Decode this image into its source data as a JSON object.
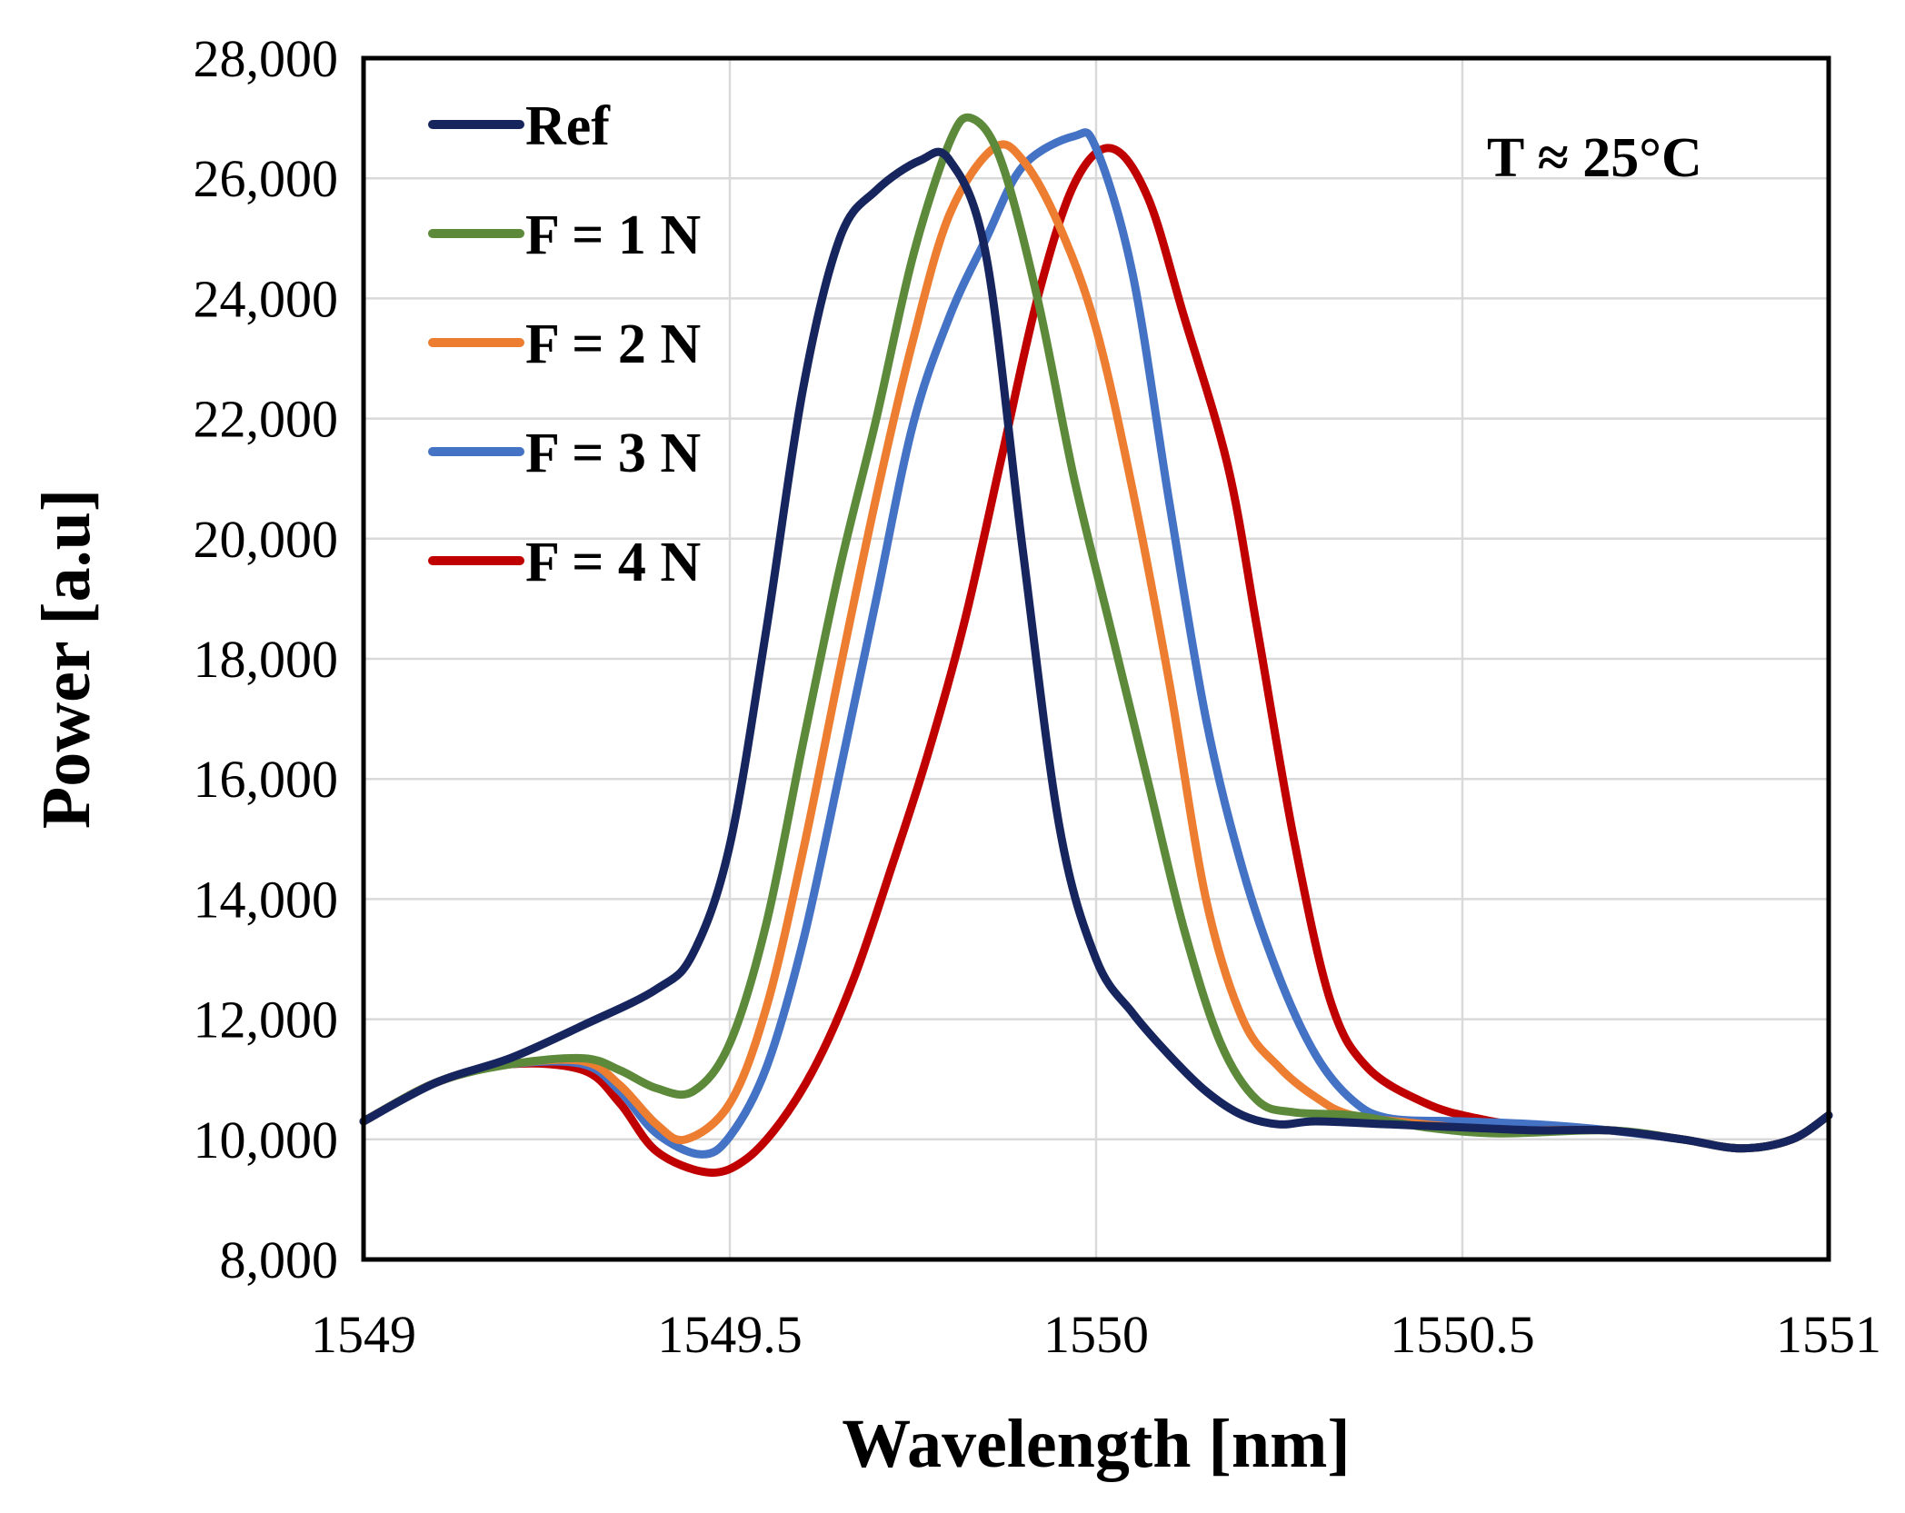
{
  "chart_data": {
    "type": "line",
    "title": "",
    "xlabel": "Wavelength [nm]",
    "ylabel": "Power [a.u]",
    "xlim": [
      1549,
      1551
    ],
    "ylim": [
      8000,
      28000
    ],
    "grid": true,
    "legend_position": "top-left",
    "x_ticks": [
      1549,
      1549.5,
      1550,
      1550.5,
      1551
    ],
    "x_tick_labels": [
      "1549",
      "1549.5",
      "1550",
      "1550.5",
      "1551"
    ],
    "y_ticks": [
      8000,
      10000,
      12000,
      14000,
      16000,
      18000,
      20000,
      22000,
      24000,
      26000,
      28000
    ],
    "y_tick_labels": [
      "8,000",
      "10,000",
      "12,000",
      "14,000",
      "16,000",
      "18,000",
      "20,000",
      "22,000",
      "24,000",
      "26,000",
      "28,000"
    ],
    "annotations": [
      "T ≈ 25°C"
    ],
    "series": [
      {
        "name": "Ref",
        "color": "#17255e",
        "points": [
          [
            1549.0,
            10300
          ],
          [
            1549.1,
            10950
          ],
          [
            1549.2,
            11350
          ],
          [
            1549.3,
            11900
          ],
          [
            1549.4,
            12500
          ],
          [
            1549.45,
            13100
          ],
          [
            1549.5,
            14900
          ],
          [
            1549.55,
            18500
          ],
          [
            1549.6,
            22500
          ],
          [
            1549.65,
            25000
          ],
          [
            1549.7,
            25800
          ],
          [
            1549.76,
            26300
          ],
          [
            1549.8,
            26300
          ],
          [
            1549.85,
            24700
          ],
          [
            1549.9,
            19800
          ],
          [
            1549.95,
            15200
          ],
          [
            1550.0,
            13000
          ],
          [
            1550.05,
            12100
          ],
          [
            1550.1,
            11400
          ],
          [
            1550.15,
            10800
          ],
          [
            1550.2,
            10400
          ],
          [
            1550.25,
            10250
          ],
          [
            1550.3,
            10300
          ],
          [
            1550.4,
            10250
          ],
          [
            1550.5,
            10200
          ],
          [
            1550.6,
            10150
          ],
          [
            1550.7,
            10150
          ],
          [
            1550.8,
            10000
          ],
          [
            1550.88,
            9850
          ],
          [
            1550.95,
            10000
          ],
          [
            1551.0,
            10400
          ]
        ]
      },
      {
        "name": "F = 1 N",
        "color": "#5c8a3a",
        "points": [
          [
            1549.0,
            10300
          ],
          [
            1549.1,
            10950
          ],
          [
            1549.2,
            11250
          ],
          [
            1549.3,
            11350
          ],
          [
            1549.35,
            11150
          ],
          [
            1549.4,
            10850
          ],
          [
            1549.45,
            10800
          ],
          [
            1549.5,
            11600
          ],
          [
            1549.55,
            13600
          ],
          [
            1549.6,
            16600
          ],
          [
            1549.65,
            19500
          ],
          [
            1549.7,
            22000
          ],
          [
            1549.75,
            24700
          ],
          [
            1549.8,
            26600
          ],
          [
            1549.83,
            27000
          ],
          [
            1549.87,
            26300
          ],
          [
            1549.92,
            24000
          ],
          [
            1549.97,
            21000
          ],
          [
            1550.02,
            18500
          ],
          [
            1550.07,
            16000
          ],
          [
            1550.12,
            13500
          ],
          [
            1550.17,
            11600
          ],
          [
            1550.22,
            10650
          ],
          [
            1550.27,
            10450
          ],
          [
            1550.35,
            10400
          ],
          [
            1550.45,
            10200
          ],
          [
            1550.55,
            10100
          ],
          [
            1550.7,
            10150
          ],
          [
            1550.8,
            10000
          ],
          [
            1550.88,
            9850
          ],
          [
            1550.95,
            10000
          ],
          [
            1551.0,
            10400
          ]
        ]
      },
      {
        "name": "F = 2 N",
        "color": "#ed7d31",
        "points": [
          [
            1549.0,
            10300
          ],
          [
            1549.1,
            10950
          ],
          [
            1549.2,
            11250
          ],
          [
            1549.3,
            11300
          ],
          [
            1549.35,
            10900
          ],
          [
            1549.4,
            10250
          ],
          [
            1549.44,
            10000
          ],
          [
            1549.5,
            10600
          ],
          [
            1549.55,
            12200
          ],
          [
            1549.6,
            14800
          ],
          [
            1549.65,
            17800
          ],
          [
            1549.7,
            20700
          ],
          [
            1549.75,
            23300
          ],
          [
            1549.8,
            25400
          ],
          [
            1549.86,
            26500
          ],
          [
            1549.9,
            26300
          ],
          [
            1549.95,
            25200
          ],
          [
            1550.0,
            23500
          ],
          [
            1550.05,
            20800
          ],
          [
            1550.1,
            17600
          ],
          [
            1550.15,
            14000
          ],
          [
            1550.2,
            12000
          ],
          [
            1550.25,
            11200
          ],
          [
            1550.3,
            10700
          ],
          [
            1550.35,
            10400
          ],
          [
            1550.45,
            10250
          ],
          [
            1550.55,
            10150
          ],
          [
            1550.7,
            10150
          ],
          [
            1550.8,
            10000
          ],
          [
            1550.88,
            9850
          ],
          [
            1550.95,
            10000
          ],
          [
            1551.0,
            10400
          ]
        ]
      },
      {
        "name": "F = 3 N",
        "color": "#4472c4",
        "points": [
          [
            1549.0,
            10300
          ],
          [
            1549.1,
            10950
          ],
          [
            1549.2,
            11250
          ],
          [
            1549.3,
            11250
          ],
          [
            1549.35,
            10800
          ],
          [
            1549.4,
            10100
          ],
          [
            1549.46,
            9750
          ],
          [
            1549.5,
            10050
          ],
          [
            1549.55,
            11200
          ],
          [
            1549.6,
            13300
          ],
          [
            1549.65,
            16100
          ],
          [
            1549.7,
            19000
          ],
          [
            1549.75,
            21900
          ],
          [
            1549.8,
            23700
          ],
          [
            1549.85,
            25000
          ],
          [
            1549.9,
            26200
          ],
          [
            1549.97,
            26700
          ],
          [
            1550.0,
            26500
          ],
          [
            1550.05,
            24400
          ],
          [
            1550.1,
            20600
          ],
          [
            1550.15,
            17000
          ],
          [
            1550.2,
            14500
          ],
          [
            1550.25,
            12700
          ],
          [
            1550.3,
            11400
          ],
          [
            1550.35,
            10650
          ],
          [
            1550.4,
            10350
          ],
          [
            1550.5,
            10300
          ],
          [
            1550.6,
            10250
          ],
          [
            1550.7,
            10150
          ],
          [
            1550.8,
            10000
          ],
          [
            1550.88,
            9850
          ],
          [
            1550.95,
            10000
          ],
          [
            1551.0,
            10400
          ]
        ]
      },
      {
        "name": "F = 4 N",
        "color": "#c00000",
        "points": [
          [
            1549.0,
            10300
          ],
          [
            1549.1,
            10950
          ],
          [
            1549.2,
            11250
          ],
          [
            1549.3,
            11150
          ],
          [
            1549.35,
            10600
          ],
          [
            1549.4,
            9800
          ],
          [
            1549.47,
            9450
          ],
          [
            1549.52,
            9650
          ],
          [
            1549.57,
            10300
          ],
          [
            1549.62,
            11300
          ],
          [
            1549.67,
            12700
          ],
          [
            1549.72,
            14500
          ],
          [
            1549.77,
            16400
          ],
          [
            1549.82,
            18600
          ],
          [
            1549.87,
            21300
          ],
          [
            1549.92,
            24000
          ],
          [
            1549.97,
            25900
          ],
          [
            1550.02,
            26500
          ],
          [
            1550.07,
            25700
          ],
          [
            1550.12,
            23700
          ],
          [
            1550.18,
            21200
          ],
          [
            1550.22,
            18500
          ],
          [
            1550.27,
            15000
          ],
          [
            1550.32,
            12300
          ],
          [
            1550.37,
            11200
          ],
          [
            1550.45,
            10600
          ],
          [
            1550.52,
            10350
          ],
          [
            1550.6,
            10200
          ],
          [
            1550.7,
            10150
          ],
          [
            1550.8,
            10000
          ],
          [
            1550.88,
            9850
          ],
          [
            1550.95,
            10000
          ],
          [
            1551.0,
            10400
          ]
        ]
      }
    ]
  }
}
